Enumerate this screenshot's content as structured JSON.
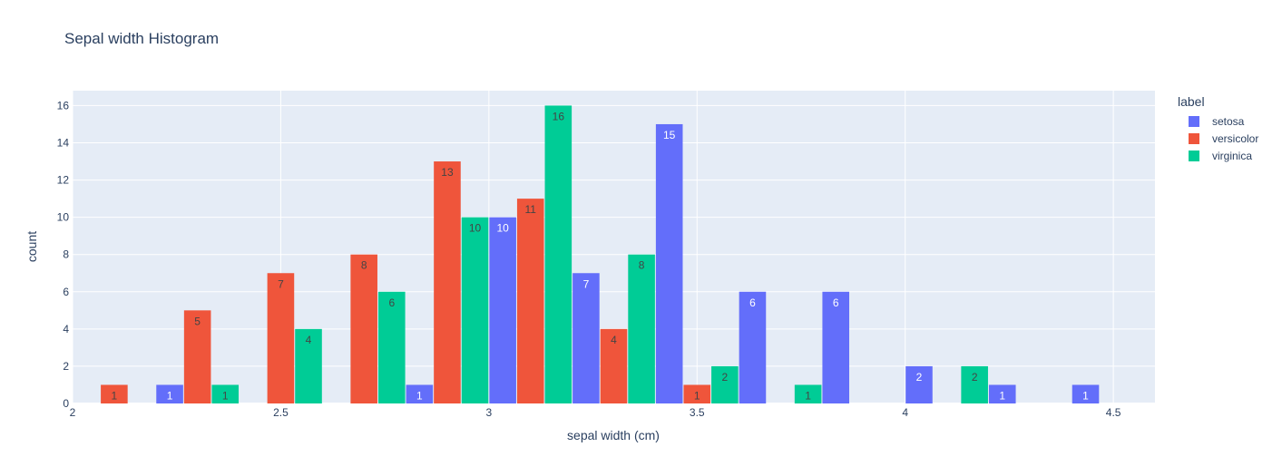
{
  "chart_data": {
    "type": "bar",
    "title": "Sepal width Histogram",
    "xlabel": "sepal width (cm)",
    "ylabel": "count",
    "xlim": [
      2,
      4.6
    ],
    "ylim": [
      0,
      16.8
    ],
    "xticks": [
      2,
      2.5,
      3,
      3.5,
      4,
      4.5
    ],
    "xtick_labels": [
      "2",
      "2.5",
      "3",
      "3.5",
      "4",
      "4.5"
    ],
    "yticks": [
      0,
      2,
      4,
      6,
      8,
      10,
      12,
      14,
      16
    ],
    "ytick_labels": [
      "0",
      "2",
      "4",
      "6",
      "8",
      "10",
      "12",
      "14",
      "16"
    ],
    "bin_size": 0.2,
    "bin_starts": [
      2.0,
      2.2,
      2.4,
      2.6,
      2.8,
      3.0,
      3.2,
      3.4,
      3.6,
      3.8,
      4.0,
      4.2,
      4.4
    ],
    "legend_title": "label",
    "legend_position": "top-right",
    "grid": true,
    "series": [
      {
        "name": "setosa",
        "color": "#636efa",
        "label_color": "#ffffff",
        "values": [
          0,
          1,
          0,
          0,
          1,
          10,
          7,
          15,
          6,
          6,
          2,
          1,
          1
        ]
      },
      {
        "name": "versicolor",
        "color": "#ef553b",
        "label_color": "#444444",
        "values": [
          1,
          5,
          7,
          8,
          13,
          11,
          4,
          1,
          0,
          0,
          0,
          0,
          0
        ]
      },
      {
        "name": "virginica",
        "color": "#00cc96",
        "label_color": "#444444",
        "values": [
          0,
          1,
          4,
          6,
          10,
          16,
          8,
          2,
          1,
          0,
          2,
          0,
          0
        ]
      }
    ]
  }
}
